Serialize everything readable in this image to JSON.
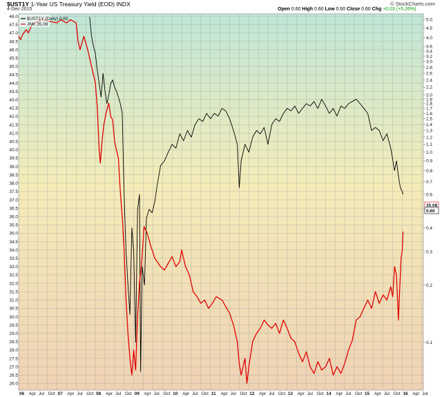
{
  "header": {
    "symbol": "$UST1Y",
    "title": "1-Year US Treasury Yield (EOD) INDX",
    "date": "4-Dec-2015",
    "credit": "© StockCharts.com",
    "open_label": "Open",
    "open": "0.60",
    "high_label": "High",
    "high": "0.60",
    "low_label": "Low",
    "low": "0.60",
    "close_label": "Close",
    "close": "0.60",
    "chg_label": "Chg",
    "chg": "+0.03 (+5.26%)"
  },
  "legend": {
    "series1": "$UST1Y (Daily) 0.60",
    "series2": "JNK 35.08"
  },
  "colors": {
    "yield": "#000000",
    "jnk": "#e00000"
  },
  "chart_data": {
    "type": "line",
    "xlim": [
      2006.0,
      2016.55
    ],
    "x_ticks": [
      {
        "t": 2006.0,
        "label": "06",
        "year": true
      },
      {
        "t": 2006.25,
        "label": "Apr"
      },
      {
        "t": 2006.5,
        "label": "Jul"
      },
      {
        "t": 2006.75,
        "label": "Oct"
      },
      {
        "t": 2007.0,
        "label": "07",
        "year": true
      },
      {
        "t": 2007.25,
        "label": "Apr"
      },
      {
        "t": 2007.5,
        "label": "Jul"
      },
      {
        "t": 2007.75,
        "label": "Oct"
      },
      {
        "t": 2008.0,
        "label": "08",
        "year": true
      },
      {
        "t": 2008.25,
        "label": "Apr"
      },
      {
        "t": 2008.5,
        "label": "Jul"
      },
      {
        "t": 2008.75,
        "label": "Oct"
      },
      {
        "t": 2009.0,
        "label": "09",
        "year": true
      },
      {
        "t": 2009.25,
        "label": "Apr"
      },
      {
        "t": 2009.5,
        "label": "Jul"
      },
      {
        "t": 2009.75,
        "label": "Oct"
      },
      {
        "t": 2010.0,
        "label": "10",
        "year": true
      },
      {
        "t": 2010.25,
        "label": "Apr"
      },
      {
        "t": 2010.5,
        "label": "Jul"
      },
      {
        "t": 2010.75,
        "label": "Oct"
      },
      {
        "t": 2011.0,
        "label": "11",
        "year": true
      },
      {
        "t": 2011.25,
        "label": "Apr"
      },
      {
        "t": 2011.5,
        "label": "Jul"
      },
      {
        "t": 2011.75,
        "label": "Oct"
      },
      {
        "t": 2012.0,
        "label": "12",
        "year": true
      },
      {
        "t": 2012.25,
        "label": "Apr"
      },
      {
        "t": 2012.5,
        "label": "Jul"
      },
      {
        "t": 2012.75,
        "label": "Oct"
      },
      {
        "t": 2013.0,
        "label": "13",
        "year": true
      },
      {
        "t": 2013.25,
        "label": "Apr"
      },
      {
        "t": 2013.5,
        "label": "Jul"
      },
      {
        "t": 2013.75,
        "label": "Oct"
      },
      {
        "t": 2014.0,
        "label": "14",
        "year": true
      },
      {
        "t": 2014.25,
        "label": "Apr"
      },
      {
        "t": 2014.5,
        "label": "Jul"
      },
      {
        "t": 2014.75,
        "label": "Oct"
      },
      {
        "t": 2015.0,
        "label": "15",
        "year": true
      },
      {
        "t": 2015.25,
        "label": "Apr"
      },
      {
        "t": 2015.5,
        "label": "Jul"
      },
      {
        "t": 2015.75,
        "label": "Oct"
      },
      {
        "t": 2016.0,
        "label": "16",
        "year": true
      },
      {
        "t": 2016.25,
        "label": "Apr"
      },
      {
        "t": 2016.5,
        "label": "Jul"
      }
    ],
    "left_axis": {
      "label": "JNK",
      "min": 25.6,
      "max": 48.15,
      "step": 0.5,
      "ticks": [
        "48.0",
        "47.5",
        "47.0",
        "46.5",
        "46.0",
        "45.5",
        "45.0",
        "44.5",
        "44.0",
        "43.5",
        "43.0",
        "42.5",
        "42.0",
        "41.5",
        "41.0",
        "40.5",
        "40.0",
        "39.5",
        "39.0",
        "38.5",
        "38.0",
        "37.5",
        "37.0",
        "36.5",
        "36.0",
        "35.5",
        "35.0",
        "34.5",
        "34.0",
        "33.5",
        "33.0",
        "32.5",
        "32.0",
        "31.5",
        "31.0",
        "30.5",
        "30.0",
        "29.5",
        "29.0",
        "28.5",
        "28.0",
        "27.5",
        "27.0",
        "26.5",
        "26.0"
      ]
    },
    "right_axis": {
      "label": "$UST1Y",
      "scale": "log",
      "min": 0.056,
      "max": 5.35,
      "ticks": [
        "5.0",
        "4.5",
        "4.0",
        "3.6",
        "3.4",
        "3.2",
        "3.0",
        "2.8",
        "2.6",
        "2.4",
        "2.2",
        "2.0",
        "1.9",
        "1.8",
        "1.7",
        "1.6",
        "1.5",
        "1.4",
        "1.3",
        "1.2",
        "1.1",
        "1.0",
        "0.9",
        "0.8",
        "0.7",
        "0.6",
        "0.5",
        "0.4",
        "0.3",
        "0.2",
        "0.1"
      ]
    },
    "last_values": {
      "jnk": "35.08",
      "yield": "0.60"
    },
    "series": [
      {
        "name": "$UST1Y (Daily) 0.60",
        "axis": "right",
        "color": "#000000",
        "points": [
          [
            2007.85,
            5.15
          ],
          [
            2007.9,
            4.1
          ],
          [
            2007.95,
            3.6
          ],
          [
            2008.0,
            3.3
          ],
          [
            2008.05,
            2.7
          ],
          [
            2008.1,
            2.3
          ],
          [
            2008.15,
            1.95
          ],
          [
            2008.2,
            2.6
          ],
          [
            2008.25,
            2.1
          ],
          [
            2008.3,
            1.8
          ],
          [
            2008.35,
            2.0
          ],
          [
            2008.4,
            2.3
          ],
          [
            2008.45,
            2.4
          ],
          [
            2008.5,
            2.2
          ],
          [
            2008.55,
            2.1
          ],
          [
            2008.6,
            1.95
          ],
          [
            2008.65,
            1.8
          ],
          [
            2008.7,
            1.6
          ],
          [
            2008.75,
            0.6
          ],
          [
            2008.8,
            0.3
          ],
          [
            2008.85,
            0.2
          ],
          [
            2008.9,
            0.14
          ],
          [
            2008.95,
            0.4
          ],
          [
            2009.0,
            0.3
          ],
          [
            2009.05,
            0.1
          ],
          [
            2009.1,
            0.5
          ],
          [
            2009.15,
            0.6
          ],
          [
            2009.18,
            0.07
          ],
          [
            2009.22,
            0.25
          ],
          [
            2009.28,
            0.2
          ],
          [
            2009.33,
            0.45
          ],
          [
            2009.4,
            0.5
          ],
          [
            2009.48,
            0.48
          ],
          [
            2009.55,
            0.55
          ],
          [
            2009.6,
            0.65
          ],
          [
            2009.7,
            0.85
          ],
          [
            2009.8,
            0.9
          ],
          [
            2009.9,
            1.0
          ],
          [
            2010.0,
            1.1
          ],
          [
            2010.1,
            1.05
          ],
          [
            2010.2,
            1.25
          ],
          [
            2010.3,
            1.15
          ],
          [
            2010.4,
            1.3
          ],
          [
            2010.5,
            1.2
          ],
          [
            2010.6,
            1.4
          ],
          [
            2010.7,
            1.5
          ],
          [
            2010.8,
            1.45
          ],
          [
            2010.9,
            1.6
          ],
          [
            2011.0,
            1.5
          ],
          [
            2011.1,
            1.6
          ],
          [
            2011.2,
            1.55
          ],
          [
            2011.3,
            1.7
          ],
          [
            2011.4,
            1.65
          ],
          [
            2011.5,
            1.5
          ],
          [
            2011.6,
            1.3
          ],
          [
            2011.7,
            1.1
          ],
          [
            2011.75,
            0.65
          ],
          [
            2011.8,
            0.9
          ],
          [
            2011.9,
            1.1
          ],
          [
            2012.0,
            1.0
          ],
          [
            2012.1,
            1.2
          ],
          [
            2012.2,
            1.3
          ],
          [
            2012.3,
            1.25
          ],
          [
            2012.4,
            1.35
          ],
          [
            2012.5,
            1.1
          ],
          [
            2012.6,
            1.4
          ],
          [
            2012.7,
            1.5
          ],
          [
            2012.8,
            1.45
          ],
          [
            2012.9,
            1.6
          ],
          [
            2013.0,
            1.7
          ],
          [
            2013.1,
            1.65
          ],
          [
            2013.2,
            1.75
          ],
          [
            2013.3,
            1.6
          ],
          [
            2013.4,
            1.7
          ],
          [
            2013.5,
            1.8
          ],
          [
            2013.6,
            1.75
          ],
          [
            2013.7,
            1.85
          ],
          [
            2013.8,
            1.7
          ],
          [
            2013.9,
            1.9
          ],
          [
            2014.0,
            1.75
          ],
          [
            2014.1,
            1.6
          ],
          [
            2014.2,
            1.7
          ],
          [
            2014.3,
            1.55
          ],
          [
            2014.4,
            1.75
          ],
          [
            2014.5,
            1.7
          ],
          [
            2014.6,
            1.8
          ],
          [
            2014.7,
            1.85
          ],
          [
            2014.8,
            1.9
          ],
          [
            2014.9,
            1.8
          ],
          [
            2015.0,
            1.7
          ],
          [
            2015.1,
            1.6
          ],
          [
            2015.2,
            1.3
          ],
          [
            2015.3,
            1.35
          ],
          [
            2015.4,
            1.3
          ],
          [
            2015.5,
            1.15
          ],
          [
            2015.6,
            1.25
          ],
          [
            2015.7,
            1.05
          ],
          [
            2015.8,
            0.8
          ],
          [
            2015.85,
            0.9
          ],
          [
            2015.9,
            0.75
          ],
          [
            2015.95,
            0.65
          ],
          [
            2016.0,
            0.62
          ],
          [
            2016.02,
            0.6
          ]
        ]
      },
      {
        "name": "JNK 35.08",
        "axis": "left",
        "color": "#e00000",
        "points": [
          [
            2006.0,
            46.8
          ],
          [
            2006.05,
            46.6
          ],
          [
            2006.1,
            46.9
          ],
          [
            2006.2,
            47.2
          ],
          [
            2006.25,
            47.0
          ],
          [
            2006.35,
            47.5
          ],
          [
            2006.5,
            47.7
          ],
          [
            2006.6,
            47.8
          ],
          [
            2006.8,
            47.7
          ],
          [
            2007.0,
            47.6
          ],
          [
            2007.1,
            47.8
          ],
          [
            2007.25,
            47.6
          ],
          [
            2007.35,
            47.8
          ],
          [
            2007.5,
            47.6
          ],
          [
            2007.55,
            46.5
          ],
          [
            2007.6,
            46.0
          ],
          [
            2007.7,
            46.8
          ],
          [
            2007.8,
            46.0
          ],
          [
            2007.9,
            45.0
          ],
          [
            2008.0,
            44.0
          ],
          [
            2008.05,
            42.5
          ],
          [
            2008.1,
            40.0
          ],
          [
            2008.13,
            39.2
          ],
          [
            2008.17,
            40.4
          ],
          [
            2008.22,
            41.5
          ],
          [
            2008.28,
            42.2
          ],
          [
            2008.35,
            42.8
          ],
          [
            2008.4,
            42.0
          ],
          [
            2008.45,
            41.8
          ],
          [
            2008.5,
            40.5
          ],
          [
            2008.55,
            40.0
          ],
          [
            2008.6,
            39.5
          ],
          [
            2008.65,
            37.5
          ],
          [
            2008.7,
            36.0
          ],
          [
            2008.75,
            34.0
          ],
          [
            2008.8,
            31.0
          ],
          [
            2008.85,
            29.0
          ],
          [
            2008.9,
            27.5
          ],
          [
            2008.95,
            26.5
          ],
          [
            2009.0,
            28.0
          ],
          [
            2009.05,
            26.8
          ],
          [
            2009.1,
            30.0
          ],
          [
            2009.15,
            32.0
          ],
          [
            2009.2,
            33.0
          ],
          [
            2009.27,
            35.4
          ],
          [
            2009.35,
            35.0
          ],
          [
            2009.45,
            34.2
          ],
          [
            2009.55,
            33.5
          ],
          [
            2009.7,
            33.0
          ],
          [
            2009.8,
            32.8
          ],
          [
            2009.9,
            33.2
          ],
          [
            2010.0,
            33.6
          ],
          [
            2010.1,
            33.0
          ],
          [
            2010.2,
            33.3
          ],
          [
            2010.25,
            34.0
          ],
          [
            2010.35,
            33.0
          ],
          [
            2010.45,
            32.5
          ],
          [
            2010.55,
            31.5
          ],
          [
            2010.65,
            31.2
          ],
          [
            2010.75,
            30.8
          ],
          [
            2010.85,
            31.0
          ],
          [
            2010.95,
            30.5
          ],
          [
            2011.05,
            30.8
          ],
          [
            2011.15,
            31.2
          ],
          [
            2011.3,
            31.0
          ],
          [
            2011.4,
            30.6
          ],
          [
            2011.5,
            30.2
          ],
          [
            2011.6,
            29.5
          ],
          [
            2011.7,
            28.5
          ],
          [
            2011.75,
            27.2
          ],
          [
            2011.8,
            26.5
          ],
          [
            2011.85,
            27.0
          ],
          [
            2011.9,
            27.5
          ],
          [
            2011.95,
            26.0
          ],
          [
            2012.0,
            27.0
          ],
          [
            2012.1,
            28.5
          ],
          [
            2012.2,
            29.0
          ],
          [
            2012.3,
            29.3
          ],
          [
            2012.4,
            29.8
          ],
          [
            2012.5,
            29.5
          ],
          [
            2012.6,
            29.3
          ],
          [
            2012.7,
            29.6
          ],
          [
            2012.8,
            29.0
          ],
          [
            2012.9,
            29.8
          ],
          [
            2013.0,
            29.3
          ],
          [
            2013.1,
            28.7
          ],
          [
            2013.2,
            28.5
          ],
          [
            2013.3,
            27.8
          ],
          [
            2013.4,
            27.3
          ],
          [
            2013.5,
            27.9
          ],
          [
            2013.6,
            27.0
          ],
          [
            2013.7,
            26.6
          ],
          [
            2013.8,
            27.3
          ],
          [
            2013.9,
            26.8
          ],
          [
            2014.0,
            27.0
          ],
          [
            2014.1,
            27.5
          ],
          [
            2014.2,
            26.5
          ],
          [
            2014.3,
            27.0
          ],
          [
            2014.4,
            26.6
          ],
          [
            2014.5,
            27.2
          ],
          [
            2014.6,
            28.0
          ],
          [
            2014.7,
            28.6
          ],
          [
            2014.8,
            29.8
          ],
          [
            2014.9,
            30.0
          ],
          [
            2015.0,
            30.5
          ],
          [
            2015.1,
            31.0
          ],
          [
            2015.2,
            30.5
          ],
          [
            2015.3,
            31.5
          ],
          [
            2015.4,
            30.8
          ],
          [
            2015.5,
            31.3
          ],
          [
            2015.6,
            31.0
          ],
          [
            2015.7,
            31.8
          ],
          [
            2015.75,
            31.2
          ],
          [
            2015.8,
            33.0
          ],
          [
            2015.85,
            32.5
          ],
          [
            2015.9,
            29.8
          ],
          [
            2015.93,
            31.5
          ],
          [
            2015.97,
            33.5
          ],
          [
            2016.0,
            34.0
          ],
          [
            2016.02,
            35.1
          ]
        ]
      }
    ]
  }
}
